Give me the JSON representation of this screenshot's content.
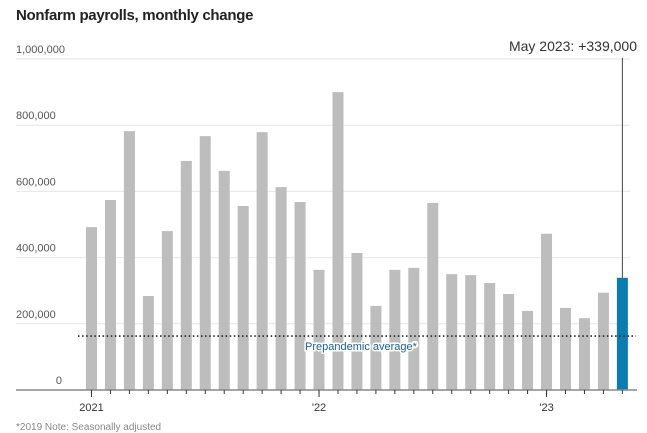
{
  "chart_data": {
    "type": "bar",
    "title": "Nonfarm payrolls, monthly change",
    "categories": [
      "Jan 2021",
      "Feb 2021",
      "Mar 2021",
      "Apr 2021",
      "May 2021",
      "Jun 2021",
      "Jul 2021",
      "Aug 2021",
      "Sep 2021",
      "Oct 2021",
      "Nov 2021",
      "Dec 2021",
      "Jan 2022",
      "Feb 2022",
      "Mar 2022",
      "Apr 2022",
      "May 2022",
      "Jun 2022",
      "Jul 2022",
      "Aug 2022",
      "Sep 2022",
      "Oct 2022",
      "Nov 2022",
      "Dec 2022",
      "Jan 2023",
      "Feb 2023",
      "Mar 2023",
      "Apr 2023",
      "May 2023"
    ],
    "values": [
      492000,
      574000,
      782000,
      284000,
      480000,
      692000,
      767000,
      662000,
      556000,
      779000,
      613000,
      568000,
      363000,
      900000,
      414000,
      254000,
      363000,
      369000,
      565000,
      350000,
      347000,
      323000,
      290000,
      239000,
      472000,
      248000,
      217000,
      294000,
      339000
    ],
    "ylim": [
      0,
      1000000
    ],
    "y_ticks": [
      "0",
      "200,000",
      "400,000",
      "600,000",
      "800,000",
      "1,000,000"
    ],
    "x_tick_labels": [
      {
        "label": "2021",
        "index": 0
      },
      {
        "label": "'22",
        "index": 12
      },
      {
        "label": "'23",
        "index": 24
      }
    ],
    "grid": true,
    "highlight": {
      "index": 28,
      "label": "May 2023: +339,000"
    },
    "reference_line": {
      "value": 163000,
      "label": "Prepandemic average*"
    },
    "colors": {
      "bar": "#bdbdbd",
      "highlight": "#0b7cb0"
    },
    "footnote": "*2019     Note: Seasonally adjusted"
  }
}
